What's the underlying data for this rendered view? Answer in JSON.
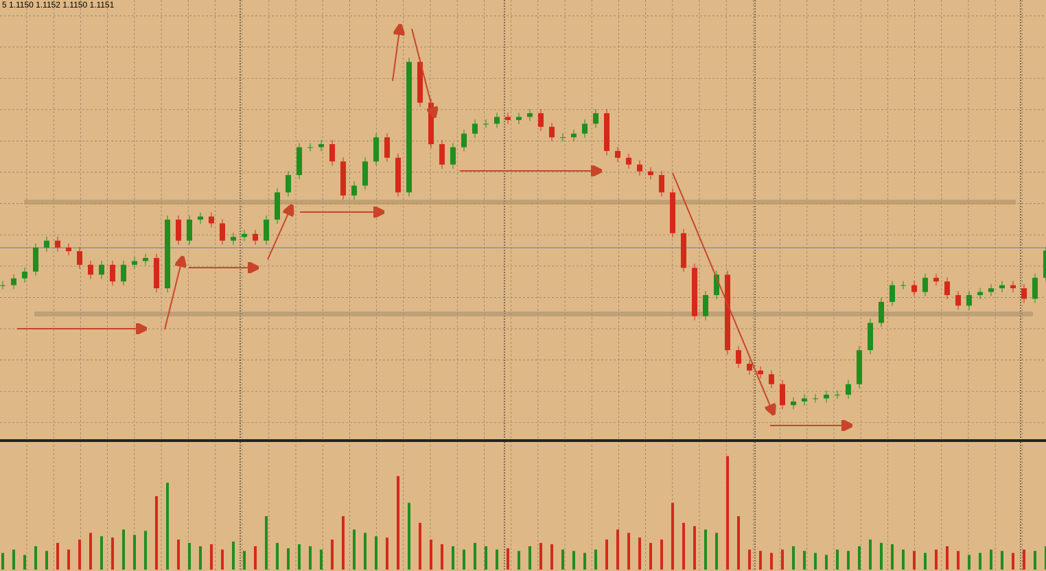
{
  "chart_data": {
    "type": "candlestick",
    "title": "5  1.1150 1.1152 1.1150 1.1151",
    "values": [
      1.11449,
      1.1146,
      1.11471,
      1.1151,
      1.11521,
      1.1151,
      1.11504,
      1.11482,
      1.11466,
      1.11482,
      1.11455,
      1.11482,
      1.11488,
      1.11493,
      1.11444,
      1.11555,
      1.11521,
      1.11555,
      1.1156,
      1.11549,
      1.11521,
      1.11527,
      1.11532,
      1.11521,
      1.11555,
      1.11599,
      1.11627,
      1.11672,
      1.11672,
      1.11677,
      1.11649,
      1.11594,
      1.1161,
      1.11649,
      1.11688,
      1.11655,
      1.11599,
      1.1181,
      1.11744,
      1.11677,
      1.11644,
      1.11672,
      1.11694,
      1.1171,
      1.1171,
      1.11721,
      1.11716,
      1.11721,
      1.11727,
      1.11705,
      1.11688,
      1.11688,
      1.11694,
      1.1171,
      1.11727,
      1.11666,
      1.11655,
      1.11644,
      1.11633,
      1.11627,
      1.11599,
      1.11533,
      1.11477,
      1.11399,
      1.11433,
      1.11466,
      1.11344,
      1.11322,
      1.11311,
      1.11305,
      1.11289,
      1.11255,
      1.11261,
      1.11266,
      1.11266,
      1.11272,
      1.11272,
      1.11289,
      1.11344,
      1.11388,
      1.11422,
      1.11449,
      1.11449,
      1.11438,
      1.11461,
      1.11455,
      1.11433,
      1.11416,
      1.11433,
      1.11438,
      1.11444,
      1.11449,
      1.11444,
      1.11427,
      1.11461,
      1.11505
    ],
    "volume": [
      25,
      30,
      22,
      35,
      28,
      40,
      30,
      45,
      55,
      50,
      48,
      60,
      52,
      58,
      110,
      130,
      45,
      40,
      35,
      38,
      30,
      42,
      28,
      35,
      80,
      40,
      32,
      38,
      35,
      30,
      45,
      80,
      60,
      55,
      50,
      48,
      140,
      100,
      70,
      45,
      38,
      35,
      30,
      40,
      35,
      30,
      32,
      28,
      35,
      40,
      38,
      30,
      28,
      25,
      30,
      45,
      60,
      55,
      48,
      40,
      45,
      100,
      70,
      65,
      60,
      55,
      170,
      80,
      30,
      28,
      25,
      30,
      35,
      28,
      25,
      22,
      30,
      28,
      35,
      45,
      40,
      38,
      30,
      28,
      25,
      30,
      35,
      28,
      22,
      25,
      30,
      28,
      25,
      30,
      28,
      35
    ],
    "ylim": [
      1.112,
      1.1191
    ],
    "y2lim": [
      0,
      190
    ],
    "grid": true,
    "up_color": "#1f8f1f",
    "down_color": "#d42a1a"
  }
}
